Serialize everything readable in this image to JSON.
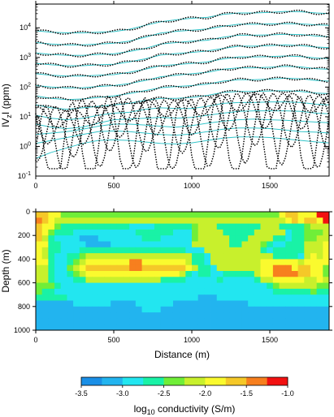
{
  "chart_data": [
    {
      "type": "line",
      "panel": "top",
      "ylabel": "IVzI (ppm)",
      "ylabel_parts": {
        "pre": "IV",
        "sub": "z",
        "post": "I (ppm)"
      },
      "xlim": [
        0,
        1880
      ],
      "ylim_log10": [
        -1,
        4.8
      ],
      "yscale": "log",
      "x_ticks": [
        "0",
        "500",
        "1000",
        "1500"
      ],
      "x_tick_values": [
        0,
        500,
        1000,
        1500
      ],
      "y_ticks": [
        {
          "base": "10",
          "exp": "-1",
          "log10": -1
        },
        {
          "base": "10",
          "exp": "0",
          "log10": 0
        },
        {
          "base": "10",
          "exp": "1",
          "log10": 1
        },
        {
          "base": "10",
          "exp": "2",
          "log10": 2
        },
        {
          "base": "10",
          "exp": "3",
          "log10": 3
        },
        {
          "base": "10",
          "exp": "4",
          "log10": 4
        }
      ],
      "series_style": {
        "model": "#33c4c9",
        "observed": "dotted black"
      },
      "x": [
        0,
        100,
        200,
        300,
        400,
        500,
        600,
        700,
        800,
        900,
        1000,
        1100,
        1200,
        1300,
        1400,
        1500,
        1600,
        1700,
        1800,
        1880
      ],
      "series": [
        {
          "log10": [
            3.9,
            3.85,
            3.83,
            3.83,
            3.85,
            3.87,
            3.95,
            4.08,
            4.2,
            4.27,
            4.32,
            4.35,
            4.45,
            4.5,
            4.5,
            4.52,
            4.55,
            4.54,
            4.5,
            4.48
          ]
        },
        {
          "log10": [
            3.5,
            3.45,
            3.42,
            3.42,
            3.45,
            3.48,
            3.55,
            3.68,
            3.82,
            3.88,
            3.92,
            3.96,
            4.05,
            4.12,
            4.12,
            4.13,
            4.14,
            4.13,
            4.1,
            4.08
          ]
        },
        {
          "log10": [
            3.15,
            3.1,
            3.07,
            3.07,
            3.1,
            3.12,
            3.2,
            3.3,
            3.45,
            3.5,
            3.55,
            3.58,
            3.68,
            3.75,
            3.75,
            3.76,
            3.78,
            3.77,
            3.72,
            3.7
          ]
        },
        {
          "log10": [
            2.8,
            2.75,
            2.72,
            2.72,
            2.75,
            2.77,
            2.85,
            2.95,
            3.08,
            3.13,
            3.17,
            3.22,
            3.3,
            3.38,
            3.38,
            3.4,
            3.42,
            3.4,
            3.35,
            3.33
          ]
        },
        {
          "log10": [
            2.45,
            2.4,
            2.37,
            2.37,
            2.4,
            2.42,
            2.5,
            2.6,
            2.72,
            2.76,
            2.8,
            2.85,
            2.95,
            3.02,
            3.02,
            3.03,
            3.05,
            3.03,
            2.98,
            2.96
          ]
        },
        {
          "log10": [
            2.05,
            2.0,
            1.97,
            1.98,
            2.02,
            2.05,
            2.12,
            2.22,
            2.35,
            2.4,
            2.45,
            2.5,
            2.6,
            2.65,
            2.65,
            2.67,
            2.7,
            2.68,
            2.62,
            2.6
          ]
        },
        {
          "log10": [
            1.7,
            1.62,
            1.58,
            1.6,
            1.65,
            1.7,
            1.78,
            1.88,
            1.98,
            2.02,
            2.05,
            2.1,
            2.2,
            2.25,
            2.25,
            2.27,
            2.3,
            2.28,
            2.22,
            2.2
          ]
        },
        {
          "log10": [
            1.4,
            1.3,
            1.25,
            1.3,
            1.35,
            1.4,
            1.45,
            1.55,
            1.62,
            1.62,
            1.65,
            1.72,
            1.82,
            1.85,
            1.85,
            1.87,
            1.88,
            1.85,
            1.8,
            1.78
          ]
        },
        {
          "log10": [
            1.05,
            0.95,
            0.9,
            0.95,
            1.05,
            1.12,
            1.15,
            1.25,
            1.3,
            1.28,
            1.28,
            1.35,
            1.45,
            1.48,
            1.48,
            1.5,
            1.5,
            1.48,
            1.42,
            1.4
          ]
        },
        {
          "log10": [
            0.75,
            0.65,
            0.6,
            0.65,
            0.78,
            0.9,
            0.92,
            0.95,
            0.98,
            0.95,
            0.98,
            1.05,
            1.12,
            1.18,
            1.2,
            1.2,
            1.2,
            1.18,
            1.12,
            1.1
          ]
        },
        {
          "log10": [
            0.4,
            0.45,
            0.5,
            0.58,
            0.68,
            0.75,
            0.75,
            0.72,
            0.68,
            0.65,
            0.7,
            0.78,
            0.85,
            0.9,
            0.92,
            0.9,
            0.88,
            0.85,
            0.82,
            0.8
          ]
        },
        {
          "log10": [
            0.1,
            0.2,
            0.3,
            0.4,
            0.5,
            0.52,
            0.5,
            0.45,
            0.4,
            0.38,
            0.42,
            0.5,
            0.58,
            0.62,
            0.62,
            0.6,
            0.55,
            0.5,
            0.48,
            0.45
          ]
        },
        {
          "log10": [
            -0.4,
            -0.2,
            -0.05,
            0.1,
            0.2,
            0.22,
            0.2,
            0.15,
            0.1,
            0.08,
            0.12,
            0.2,
            0.28,
            0.32,
            0.32,
            0.3,
            0.25,
            0.2,
            0.15,
            0.12
          ]
        }
      ]
    },
    {
      "type": "heatmap",
      "panel": "bottom",
      "xlabel": "Distance (m)",
      "ylabel": "Depth (m)",
      "xlim": [
        0,
        1880
      ],
      "ylim": [
        0,
        1000
      ],
      "x_ticks": [
        "0",
        "500",
        "1000",
        "1500"
      ],
      "x_tick_values": [
        0,
        500,
        1000,
        1500
      ],
      "y_ticks": [
        "0",
        "200",
        "400",
        "600",
        "800",
        "1000"
      ],
      "y_tick_values": [
        0,
        200,
        400,
        600,
        800,
        1000
      ],
      "colorbar": {
        "label_pre": "log",
        "label_sub": "10",
        "label_post": " conductivity (S/m)",
        "range": [
          -3.5,
          -1.0
        ],
        "ticks": [
          "-3.5",
          "-3.0",
          "-2.5",
          "-2.0",
          "-1.5",
          "-1.0"
        ],
        "colors": [
          "#1a8fe6",
          "#22b4ef",
          "#22e6f0",
          "#19f2a6",
          "#70ee38",
          "#c8f02c",
          "#fafa2e",
          "#f5c828",
          "#f77f1e",
          "#f21111"
        ]
      },
      "nx": 47,
      "nz": 20,
      "cell_dx": 40,
      "cell_dz": 50,
      "grid": [
        "66553333333333333333333333333333333333356655589",
        "76544444444444444444444444444444444444445656658",
        "65532222222222211112222223444222222244422223444",
        "65322211111111112222221113444422222444441223334",
        "64211110001111111222111113444442224444221223344",
        "55221111000011111111111114444442244432112224445",
        "54221112222222222222222211144444444421222224445",
        "54211223444444444444444442214444444444222214545",
        "55211234555555577555555542214444444455555545555",
        "44211345666666677666666654221444444455777566553",
        "44211234555555555555555421221122222455777766553",
        "44211122444444444444222211111211111244555554454",
        "33321111111111111111111111111111111112344444433",
        "32211111111111111111111111111111111111222222322",
        "22222111111111111111111111000111111111111111111",
        "00000011111100001111110000000000001111111111111",
        "00000000000000000111000000000000000000000000000",
        "00000000000000000000000000000000000000000000000",
        "00000000000000000000000000000000000000000000000",
        "00000000000000000000000000000000000000000000000"
      ]
    }
  ]
}
